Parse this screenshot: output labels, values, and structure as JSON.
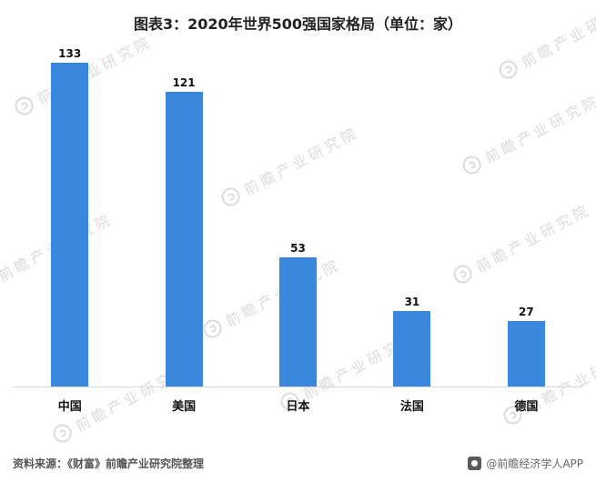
{
  "title": "图表3：2020年世界500强国家格局（单位：家）",
  "chart_data": {
    "type": "bar",
    "categories": [
      "中国",
      "美国",
      "日本",
      "法国",
      "德国"
    ],
    "values": [
      133,
      121,
      53,
      31,
      27
    ],
    "title": "图表3：2020年世界500强国家格局（单位：家）",
    "xlabel": "",
    "ylabel": "",
    "unit": "家",
    "ylim": [
      0,
      140
    ],
    "grid": false,
    "legend": false,
    "bar_color": "#3a87de",
    "value_labels_shown": true
  },
  "watermark": {
    "text": "前瞻产业研究院",
    "color": "#c9c9c9"
  },
  "footer": {
    "source": "资料来源：《财富》前瞻产业研究院整理",
    "credit": "@前瞻经济学人APP"
  },
  "colors": {
    "bar": "#3a87de",
    "title": "#222222",
    "axis_line": "#d8d8d8",
    "source_text": "#555555"
  }
}
